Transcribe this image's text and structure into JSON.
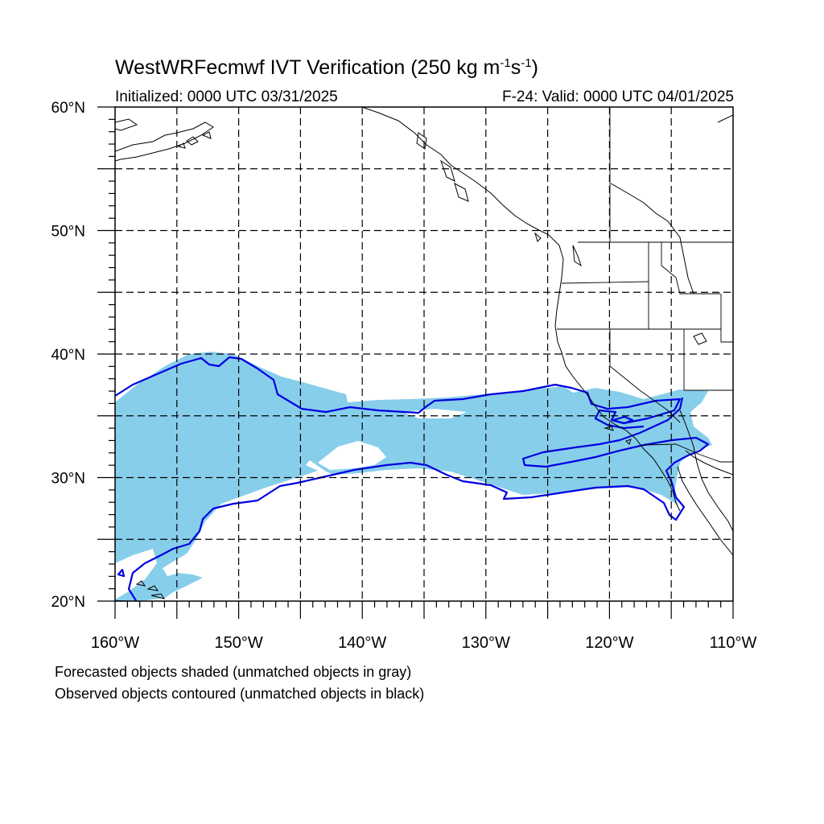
{
  "title": {
    "prefix": "WestWRFecmwf IVT Verification (250 kg m",
    "sup1": "-1",
    "mid": "s",
    "sup2": "-1",
    "suffix": ")"
  },
  "subtitle": {
    "initialized": "Initialized: 0000 UTC 03/31/2025",
    "valid": "F-24: Valid: 0000 UTC 04/01/2025"
  },
  "legend": {
    "line1": "Forecasted objects shaded (unmatched objects in gray)",
    "line2": "Observed objects contoured (unmatched objects in black)"
  },
  "map": {
    "extent": {
      "lon_min": -160,
      "lon_max": -110,
      "lat_min": 20,
      "lat_max": 60
    },
    "lat_labels": [
      {
        "lat": 60,
        "label": "60°N"
      },
      {
        "lat": 50,
        "label": "50°N"
      },
      {
        "lat": 40,
        "label": "40°N"
      },
      {
        "lat": 30,
        "label": "30°N"
      },
      {
        "lat": 20,
        "label": "20°N"
      }
    ],
    "lon_labels": [
      {
        "lon": -160,
        "label": "160°W"
      },
      {
        "lon": -150,
        "label": "150°W"
      },
      {
        "lon": -140,
        "label": "140°W"
      },
      {
        "lon": -130,
        "label": "130°W"
      },
      {
        "lon": -120,
        "label": "120°W"
      },
      {
        "lon": -110,
        "label": "110°W"
      }
    ],
    "grid_step_deg": 5,
    "colors": {
      "forecast_fill": "#87ceeb",
      "observed_contour": "#0000e0",
      "coast": "#000000",
      "grid": "#000000"
    }
  }
}
